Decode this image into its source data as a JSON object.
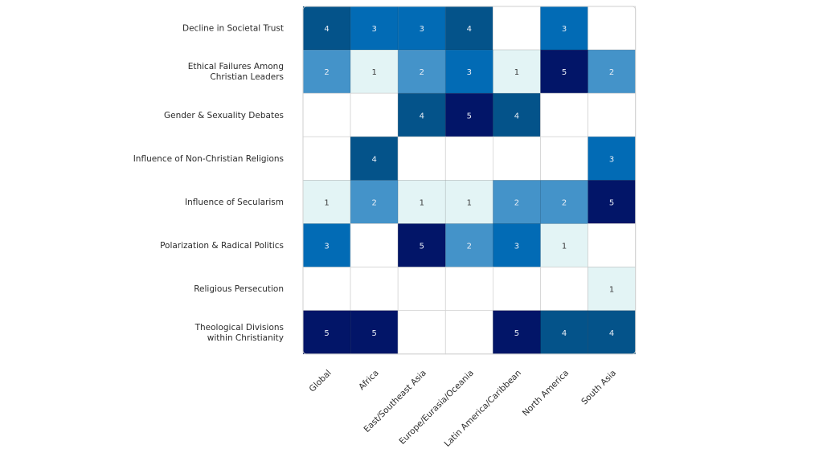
{
  "chart_data": {
    "type": "heatmap",
    "title": "",
    "xlabel": "",
    "ylabel": "",
    "rows": [
      "Decline in Societal Trust",
      "Ethical Failures Among\nChristian Leaders",
      "Gender & Sexuality Debates",
      "Influence of Non-Christian Religions",
      "Influence of Secularism",
      "Polarization & Radical Politics",
      "Religious Persecution",
      "Theological Divisions\nwithin Christianity"
    ],
    "columns": [
      "Global",
      "Africa",
      "East/Southeast Asia",
      "Europe/Eurasia/Oceania",
      "Latin America/Caribbean",
      "North America",
      "South Asia"
    ],
    "values": [
      [
        4,
        3,
        3,
        4,
        null,
        3,
        null
      ],
      [
        2,
        1,
        2,
        3,
        1,
        5,
        2
      ],
      [
        null,
        null,
        4,
        5,
        4,
        null,
        null
      ],
      [
        null,
        4,
        null,
        null,
        null,
        null,
        3
      ],
      [
        1,
        2,
        1,
        1,
        2,
        2,
        5
      ],
      [
        3,
        null,
        5,
        2,
        3,
        1,
        null
      ],
      [
        null,
        null,
        null,
        null,
        null,
        null,
        1
      ],
      [
        5,
        5,
        null,
        null,
        5,
        4,
        4
      ]
    ],
    "value_range": [
      1,
      5
    ],
    "color_scale": {
      "empty": "#ffffff",
      "1": "#e3f4f5",
      "2": "#4493c9",
      "3": "#026bb5",
      "4": "#04538a",
      "5": "#021568"
    },
    "label_colors": {
      "light": "#3a3a3a",
      "dark": "#e8eef6"
    },
    "grid": true,
    "legend": "none"
  }
}
